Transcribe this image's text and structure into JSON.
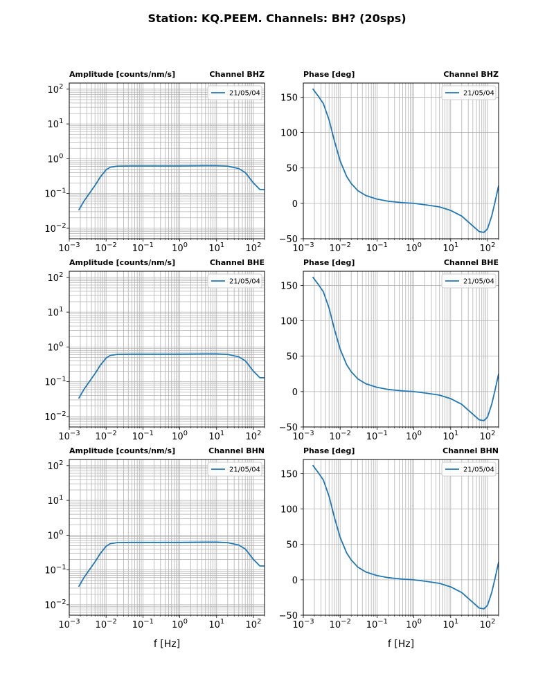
{
  "figure": {
    "title": "Station: KQ.PEEM. Channels: BH? (20sps)",
    "series_color": "#1f77b4",
    "grid_color": "#b0b0b0"
  },
  "chart_data": [
    {
      "type": "line",
      "kind": "amplitude",
      "row": 0,
      "title_left": "Amplitude [counts/nm/s]",
      "title_right": "Channel BHZ",
      "xscale": "log",
      "yscale": "log",
      "xlim": [
        0.001,
        200
      ],
      "ylim": [
        0.005,
        150
      ],
      "xlabel": "",
      "legend": "21/05/04",
      "legend_loc": "upper right",
      "series": [
        {
          "name": "21/05/04",
          "x": [
            0.0018,
            0.0025,
            0.0035,
            0.005,
            0.007,
            0.01,
            0.013,
            0.02,
            0.05,
            0.2,
            1,
            5,
            10,
            20,
            40,
            60,
            100,
            150,
            200
          ],
          "y": [
            0.033,
            0.06,
            0.1,
            0.17,
            0.3,
            0.48,
            0.57,
            0.61,
            0.62,
            0.62,
            0.62,
            0.63,
            0.63,
            0.61,
            0.52,
            0.4,
            0.2,
            0.13,
            0.13
          ]
        }
      ]
    },
    {
      "type": "line",
      "kind": "phase",
      "row": 0,
      "title_left": "Phase [deg]",
      "title_right": "Channel BHZ",
      "xscale": "log",
      "yscale": "linear",
      "xlim": [
        0.001,
        200
      ],
      "ylim": [
        -50,
        170
      ],
      "xlabel": "",
      "legend": "21/05/04",
      "legend_loc": "upper right",
      "series": [
        {
          "name": "21/05/04",
          "x": [
            0.0018,
            0.0025,
            0.0035,
            0.005,
            0.007,
            0.01,
            0.015,
            0.02,
            0.03,
            0.05,
            0.1,
            0.2,
            0.5,
            1,
            2,
            5,
            10,
            20,
            40,
            60,
            80,
            100,
            130,
            160,
            200
          ],
          "y": [
            162,
            152,
            141,
            118,
            88,
            60,
            38,
            28,
            18,
            11,
            6,
            3,
            1,
            0,
            -2,
            -5,
            -10,
            -18,
            -32,
            -40,
            -41,
            -36,
            -18,
            2,
            25
          ]
        }
      ]
    },
    {
      "type": "line",
      "kind": "amplitude",
      "row": 1,
      "title_left": "Amplitude [counts/nm/s]",
      "title_right": "Channel BHE",
      "xscale": "log",
      "yscale": "log",
      "xlim": [
        0.001,
        200
      ],
      "ylim": [
        0.005,
        150
      ],
      "xlabel": "",
      "legend": "21/05/04",
      "legend_loc": "upper right",
      "series": [
        {
          "name": "21/05/04",
          "x": [
            0.0018,
            0.0025,
            0.0035,
            0.005,
            0.007,
            0.01,
            0.013,
            0.02,
            0.05,
            0.2,
            1,
            5,
            10,
            20,
            40,
            60,
            100,
            150,
            200
          ],
          "y": [
            0.033,
            0.06,
            0.1,
            0.17,
            0.3,
            0.48,
            0.57,
            0.61,
            0.62,
            0.62,
            0.62,
            0.63,
            0.63,
            0.61,
            0.52,
            0.4,
            0.2,
            0.13,
            0.13
          ]
        }
      ]
    },
    {
      "type": "line",
      "kind": "phase",
      "row": 1,
      "title_left": "Phase [deg]",
      "title_right": "Channel BHE",
      "xscale": "log",
      "yscale": "linear",
      "xlim": [
        0.001,
        200
      ],
      "ylim": [
        -50,
        170
      ],
      "xlabel": "",
      "legend": "21/05/04",
      "legend_loc": "upper right",
      "series": [
        {
          "name": "21/05/04",
          "x": [
            0.0018,
            0.0025,
            0.0035,
            0.005,
            0.007,
            0.01,
            0.015,
            0.02,
            0.03,
            0.05,
            0.1,
            0.2,
            0.5,
            1,
            2,
            5,
            10,
            20,
            40,
            60,
            80,
            100,
            130,
            160,
            200
          ],
          "y": [
            162,
            152,
            141,
            118,
            88,
            60,
            38,
            28,
            18,
            11,
            6,
            3,
            1,
            0,
            -2,
            -5,
            -10,
            -18,
            -32,
            -40,
            -41,
            -36,
            -18,
            2,
            25
          ]
        }
      ]
    },
    {
      "type": "line",
      "kind": "amplitude",
      "row": 2,
      "title_left": "Amplitude [counts/nm/s]",
      "title_right": "Channel BHN",
      "xscale": "log",
      "yscale": "log",
      "xlim": [
        0.001,
        200
      ],
      "ylim": [
        0.005,
        150
      ],
      "xlabel": "f [Hz]",
      "legend": "21/05/04",
      "legend_loc": "upper right",
      "series": [
        {
          "name": "21/05/04",
          "x": [
            0.0018,
            0.0025,
            0.0035,
            0.005,
            0.007,
            0.01,
            0.013,
            0.02,
            0.05,
            0.2,
            1,
            5,
            10,
            20,
            40,
            60,
            100,
            150,
            200
          ],
          "y": [
            0.033,
            0.06,
            0.1,
            0.17,
            0.3,
            0.48,
            0.57,
            0.61,
            0.62,
            0.62,
            0.62,
            0.63,
            0.63,
            0.61,
            0.52,
            0.4,
            0.2,
            0.13,
            0.13
          ]
        }
      ]
    },
    {
      "type": "line",
      "kind": "phase",
      "row": 2,
      "title_left": "Phase [deg]",
      "title_right": "Channel BHN",
      "xscale": "log",
      "yscale": "linear",
      "xlim": [
        0.001,
        200
      ],
      "ylim": [
        -50,
        170
      ],
      "xlabel": "f [Hz]",
      "legend": "21/05/04",
      "legend_loc": "upper right",
      "series": [
        {
          "name": "21/05/04",
          "x": [
            0.0018,
            0.0025,
            0.0035,
            0.005,
            0.007,
            0.01,
            0.015,
            0.02,
            0.03,
            0.05,
            0.1,
            0.2,
            0.5,
            1,
            2,
            5,
            10,
            20,
            40,
            60,
            80,
            100,
            130,
            160,
            200
          ],
          "y": [
            162,
            152,
            141,
            118,
            88,
            60,
            38,
            28,
            18,
            11,
            6,
            3,
            1,
            0,
            -2,
            -5,
            -10,
            -18,
            -32,
            -40,
            -41,
            -36,
            -18,
            2,
            25
          ]
        }
      ]
    }
  ]
}
